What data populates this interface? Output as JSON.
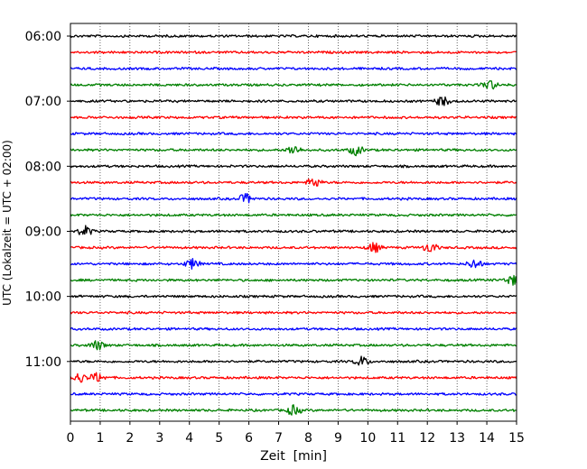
{
  "chart_data": {
    "type": "line",
    "title": "",
    "xlabel": "Zeit  [min]",
    "ylabel": "UTC (Lokalzeit = UTC + 02:00)",
    "xlim": [
      0,
      15
    ],
    "x_ticks": [
      "0",
      "1",
      "2",
      "3",
      "4",
      "5",
      "6",
      "7",
      "8",
      "9",
      "10",
      "11",
      "12",
      "13",
      "14",
      "15"
    ],
    "grid": "vertical dotted",
    "y_tick_labels": [
      "06:00",
      "07:00",
      "08:00",
      "09:00",
      "10:00",
      "11:00"
    ],
    "trace_interval_minutes": 15,
    "trace_colors": [
      "#000000",
      "#ff0000",
      "#0000ff",
      "#008000"
    ],
    "traces": [
      {
        "start": "06:00",
        "color": "#000000"
      },
      {
        "start": "06:15",
        "color": "#ff0000"
      },
      {
        "start": "06:30",
        "color": "#0000ff"
      },
      {
        "start": "06:45",
        "color": "#008000",
        "events_min": [
          14.1
        ]
      },
      {
        "start": "07:00",
        "color": "#000000",
        "events_min": [
          12.5
        ]
      },
      {
        "start": "07:15",
        "color": "#ff0000"
      },
      {
        "start": "07:30",
        "color": "#0000ff"
      },
      {
        "start": "07:45",
        "color": "#008000",
        "events_min": [
          7.5,
          9.6
        ]
      },
      {
        "start": "08:00",
        "color": "#000000"
      },
      {
        "start": "08:15",
        "color": "#ff0000",
        "events_min": [
          8.2
        ]
      },
      {
        "start": "08:30",
        "color": "#0000ff",
        "events_min": [
          5.9
        ]
      },
      {
        "start": "08:45",
        "color": "#008000"
      },
      {
        "start": "09:00",
        "color": "#000000",
        "events_min": [
          0.5
        ]
      },
      {
        "start": "09:15",
        "color": "#ff0000",
        "events_min": [
          10.2,
          12.1
        ]
      },
      {
        "start": "09:30",
        "color": "#0000ff",
        "events_min": [
          4.1,
          13.6
        ]
      },
      {
        "start": "09:45",
        "color": "#008000",
        "events_min": [
          14.85
        ]
      },
      {
        "start": "10:00",
        "color": "#000000"
      },
      {
        "start": "10:15",
        "color": "#ff0000"
      },
      {
        "start": "10:30",
        "color": "#0000ff"
      },
      {
        "start": "10:45",
        "color": "#008000",
        "events_min": [
          0.9
        ]
      },
      {
        "start": "11:00",
        "color": "#000000",
        "events_min": [
          9.8
        ]
      },
      {
        "start": "11:15",
        "color": "#ff0000",
        "events_min": [
          0.3,
          0.9
        ]
      },
      {
        "start": "11:30",
        "color": "#0000ff"
      },
      {
        "start": "11:45",
        "color": "#008000",
        "events_min": [
          7.5
        ]
      }
    ]
  }
}
